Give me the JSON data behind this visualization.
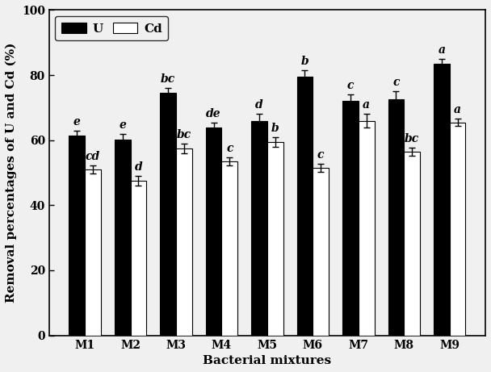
{
  "categories": [
    "M1",
    "M2",
    "M3",
    "M4",
    "M5",
    "M6",
    "M7",
    "M8",
    "M9"
  ],
  "U_values": [
    61.5,
    60.2,
    74.5,
    64.0,
    66.0,
    79.5,
    72.0,
    72.5,
    83.5
  ],
  "Cd_values": [
    51.0,
    47.5,
    57.5,
    53.5,
    59.5,
    51.5,
    66.0,
    56.5,
    65.5
  ],
  "U_errors": [
    1.5,
    1.8,
    1.5,
    1.5,
    2.0,
    2.0,
    2.0,
    2.5,
    1.5
  ],
  "Cd_errors": [
    1.2,
    1.5,
    1.5,
    1.2,
    1.5,
    1.2,
    2.0,
    1.2,
    1.2
  ],
  "U_labels": [
    "e",
    "e",
    "bc",
    "de",
    "d",
    "b",
    "c",
    "c",
    "a"
  ],
  "Cd_labels": [
    "cd",
    "d",
    "bc",
    "c",
    "b",
    "c",
    "a",
    "bc",
    "a"
  ],
  "ylabel": "Removal percentages of U and Cd (%)",
  "xlabel": "Bacterial mixtures",
  "ylim": [
    0,
    100
  ],
  "yticks": [
    0,
    20,
    40,
    60,
    80,
    100
  ],
  "legend_U": "U",
  "legend_Cd": "Cd",
  "bar_width": 0.35,
  "U_color": "#000000",
  "Cd_color": "#ffffff",
  "Cd_edge_color": "#000000",
  "label_fontsize": 11,
  "tick_fontsize": 10,
  "annot_fontsize": 10,
  "legend_fontsize": 11,
  "bg_color": "#f0f0f0"
}
